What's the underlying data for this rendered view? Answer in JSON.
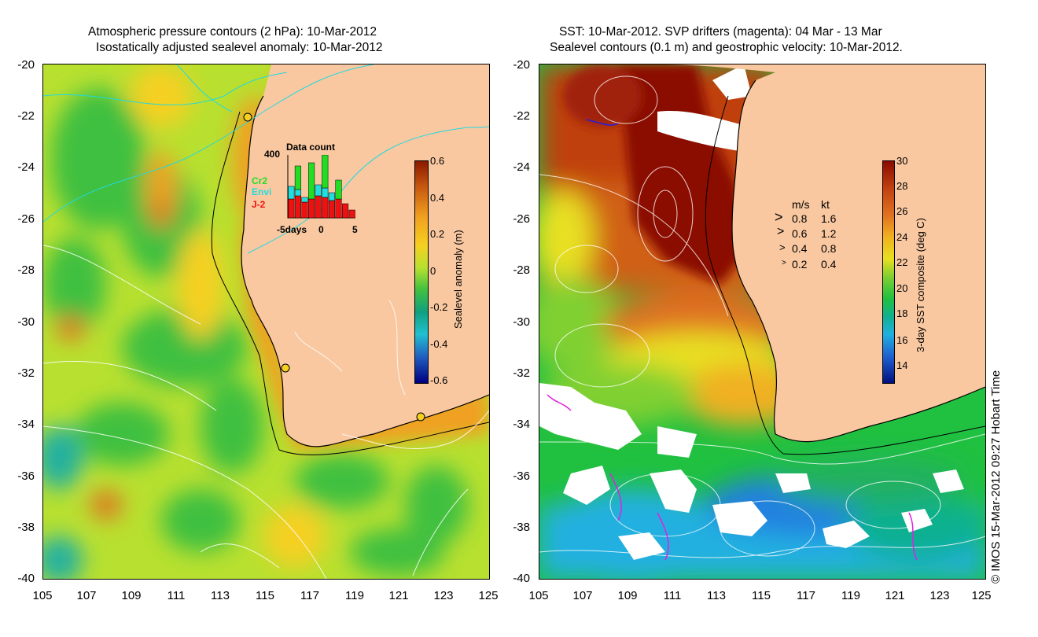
{
  "left_panel": {
    "title_line1": "Atmospheric pressure contours (2 hPa): 10-Mar-2012",
    "title_line2": "Isostatically adjusted sealevel anomaly: 10-Mar-2012",
    "colorbar_label": "Sealevel anomaly (m)",
    "colorbar_ticks": [
      "0.6",
      "0.4",
      "0.2",
      "0",
      "-0.2",
      "-0.4",
      "-0.6"
    ],
    "inset": {
      "title": "Data count",
      "ymax_label": "400",
      "x_labels": [
        "-5days",
        "0",
        "5"
      ],
      "legend": [
        {
          "label": "Cr2",
          "color": "#22dd22"
        },
        {
          "label": "Envi",
          "color": "#22dddd"
        },
        {
          "label": "J-2",
          "color": "#ee1111"
        }
      ],
      "chart_data": {
        "type": "bar",
        "title": "Data count",
        "x": [
          -5,
          -4,
          -3,
          -2,
          -1,
          0,
          1,
          2,
          3,
          4
        ],
        "series": [
          {
            "name": "J-2",
            "values": [
              120,
              140,
              100,
              120,
              140,
              130,
              110,
              120,
              90,
              50
            ]
          },
          {
            "name": "Envi",
            "values": [
              80,
              40,
              30,
              0,
              70,
              60,
              50,
              0,
              0,
              0
            ]
          },
          {
            "name": "Cr2",
            "values": [
              0,
              150,
              0,
              230,
              0,
              210,
              0,
              120,
              0,
              0
            ]
          }
        ],
        "ylim": [
          0,
          400
        ],
        "xlim": [
          -5,
          5
        ]
      }
    }
  },
  "right_panel": {
    "title_line1": "SST: 10-Mar-2012. SVP drifters (magenta): 04 Mar - 13 Mar",
    "title_line2": "Sealevel contours (0.1 m) and geostrophic velocity: 10-Mar-2012.",
    "colorbar_label": "3-day SST composite (deg C)",
    "colorbar_ticks": [
      "30",
      "28",
      "26",
      "24",
      "22",
      "20",
      "18",
      "16",
      "14"
    ],
    "velocity_legend": {
      "header_ms": "m/s",
      "header_kt": "kt",
      "rows": [
        {
          "ms": "0.8",
          "kt": "1.6"
        },
        {
          "ms": "0.6",
          "kt": "1.2"
        },
        {
          "ms": "0.4",
          "kt": "0.8"
        },
        {
          "ms": "0.2",
          "kt": "0.4"
        }
      ]
    }
  },
  "axes": {
    "lat_labels": [
      "-20",
      "-22",
      "-24",
      "-26",
      "-28",
      "-30",
      "-32",
      "-34",
      "-36",
      "-38",
      "-40"
    ],
    "lon_labels": [
      "105",
      "107",
      "109",
      "111",
      "113",
      "115",
      "117",
      "119",
      "121",
      "123",
      "125"
    ]
  },
  "credit": "© IMOS 15-Mar-2012 09:27 Hobart Time",
  "colors": {
    "land": "#f9c8a0",
    "sla_scale": [
      "#8b1a00",
      "#c85a10",
      "#f0a020",
      "#f5d020",
      "#b8e030",
      "#40c040",
      "#10a080",
      "#20c0d0",
      "#2060c0",
      "#000080"
    ],
    "sst_scale": [
      "#8b0a00",
      "#c04010",
      "#e07020",
      "#f0b020",
      "#e8e020",
      "#80d030",
      "#20c040",
      "#10b090",
      "#20b0e0",
      "#2060d0",
      "#001080"
    ]
  }
}
